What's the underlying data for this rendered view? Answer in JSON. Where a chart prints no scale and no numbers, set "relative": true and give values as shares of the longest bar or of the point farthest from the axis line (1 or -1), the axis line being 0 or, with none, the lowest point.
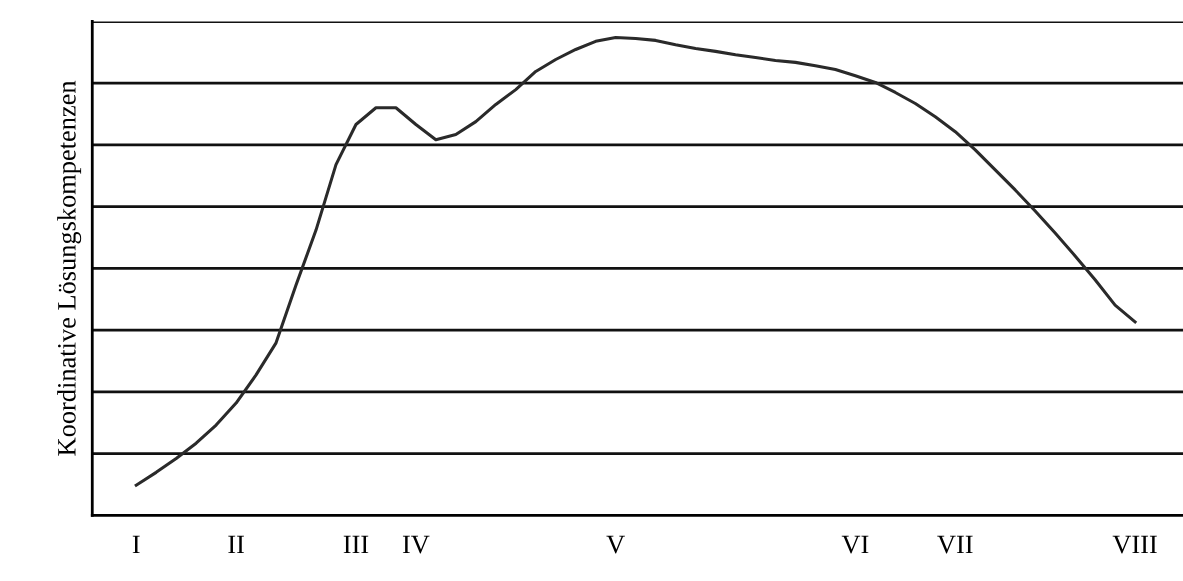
{
  "chart_data": {
    "type": "line",
    "ylabel": "Koordinative Lösungskompetenzen",
    "relative": true,
    "grid": "y",
    "color": "#2a2a2a",
    "categories": [
      "I",
      null,
      null,
      null,
      null,
      "II",
      null,
      null,
      null,
      null,
      null,
      "III",
      null,
      null,
      "IV",
      null,
      null,
      null,
      null,
      null,
      null,
      null,
      null,
      null,
      "V",
      null,
      null,
      null,
      null,
      null,
      null,
      null,
      null,
      null,
      null,
      null,
      "VI",
      null,
      null,
      null,
      null,
      "VII",
      null,
      null,
      null,
      null,
      null,
      null,
      null,
      null,
      "VIII"
    ],
    "values": [
      0.063,
      0.09,
      0.119,
      0.151,
      0.189,
      0.235,
      0.294,
      0.361,
      0.482,
      0.597,
      0.734,
      0.818,
      0.853,
      0.853,
      0.818,
      0.786,
      0.797,
      0.824,
      0.86,
      0.891,
      0.929,
      0.954,
      0.975,
      0.992,
      1.0,
      0.998,
      0.994,
      0.985,
      0.977,
      0.971,
      0.964,
      0.958,
      0.952,
      0.948,
      0.941,
      0.933,
      0.92,
      0.906,
      0.885,
      0.862,
      0.834,
      0.803,
      0.765,
      0.723,
      0.681,
      0.637,
      0.591,
      0.543,
      0.493,
      0.44,
      0.405
    ],
    "marker": "none",
    "line_style": "solid"
  }
}
